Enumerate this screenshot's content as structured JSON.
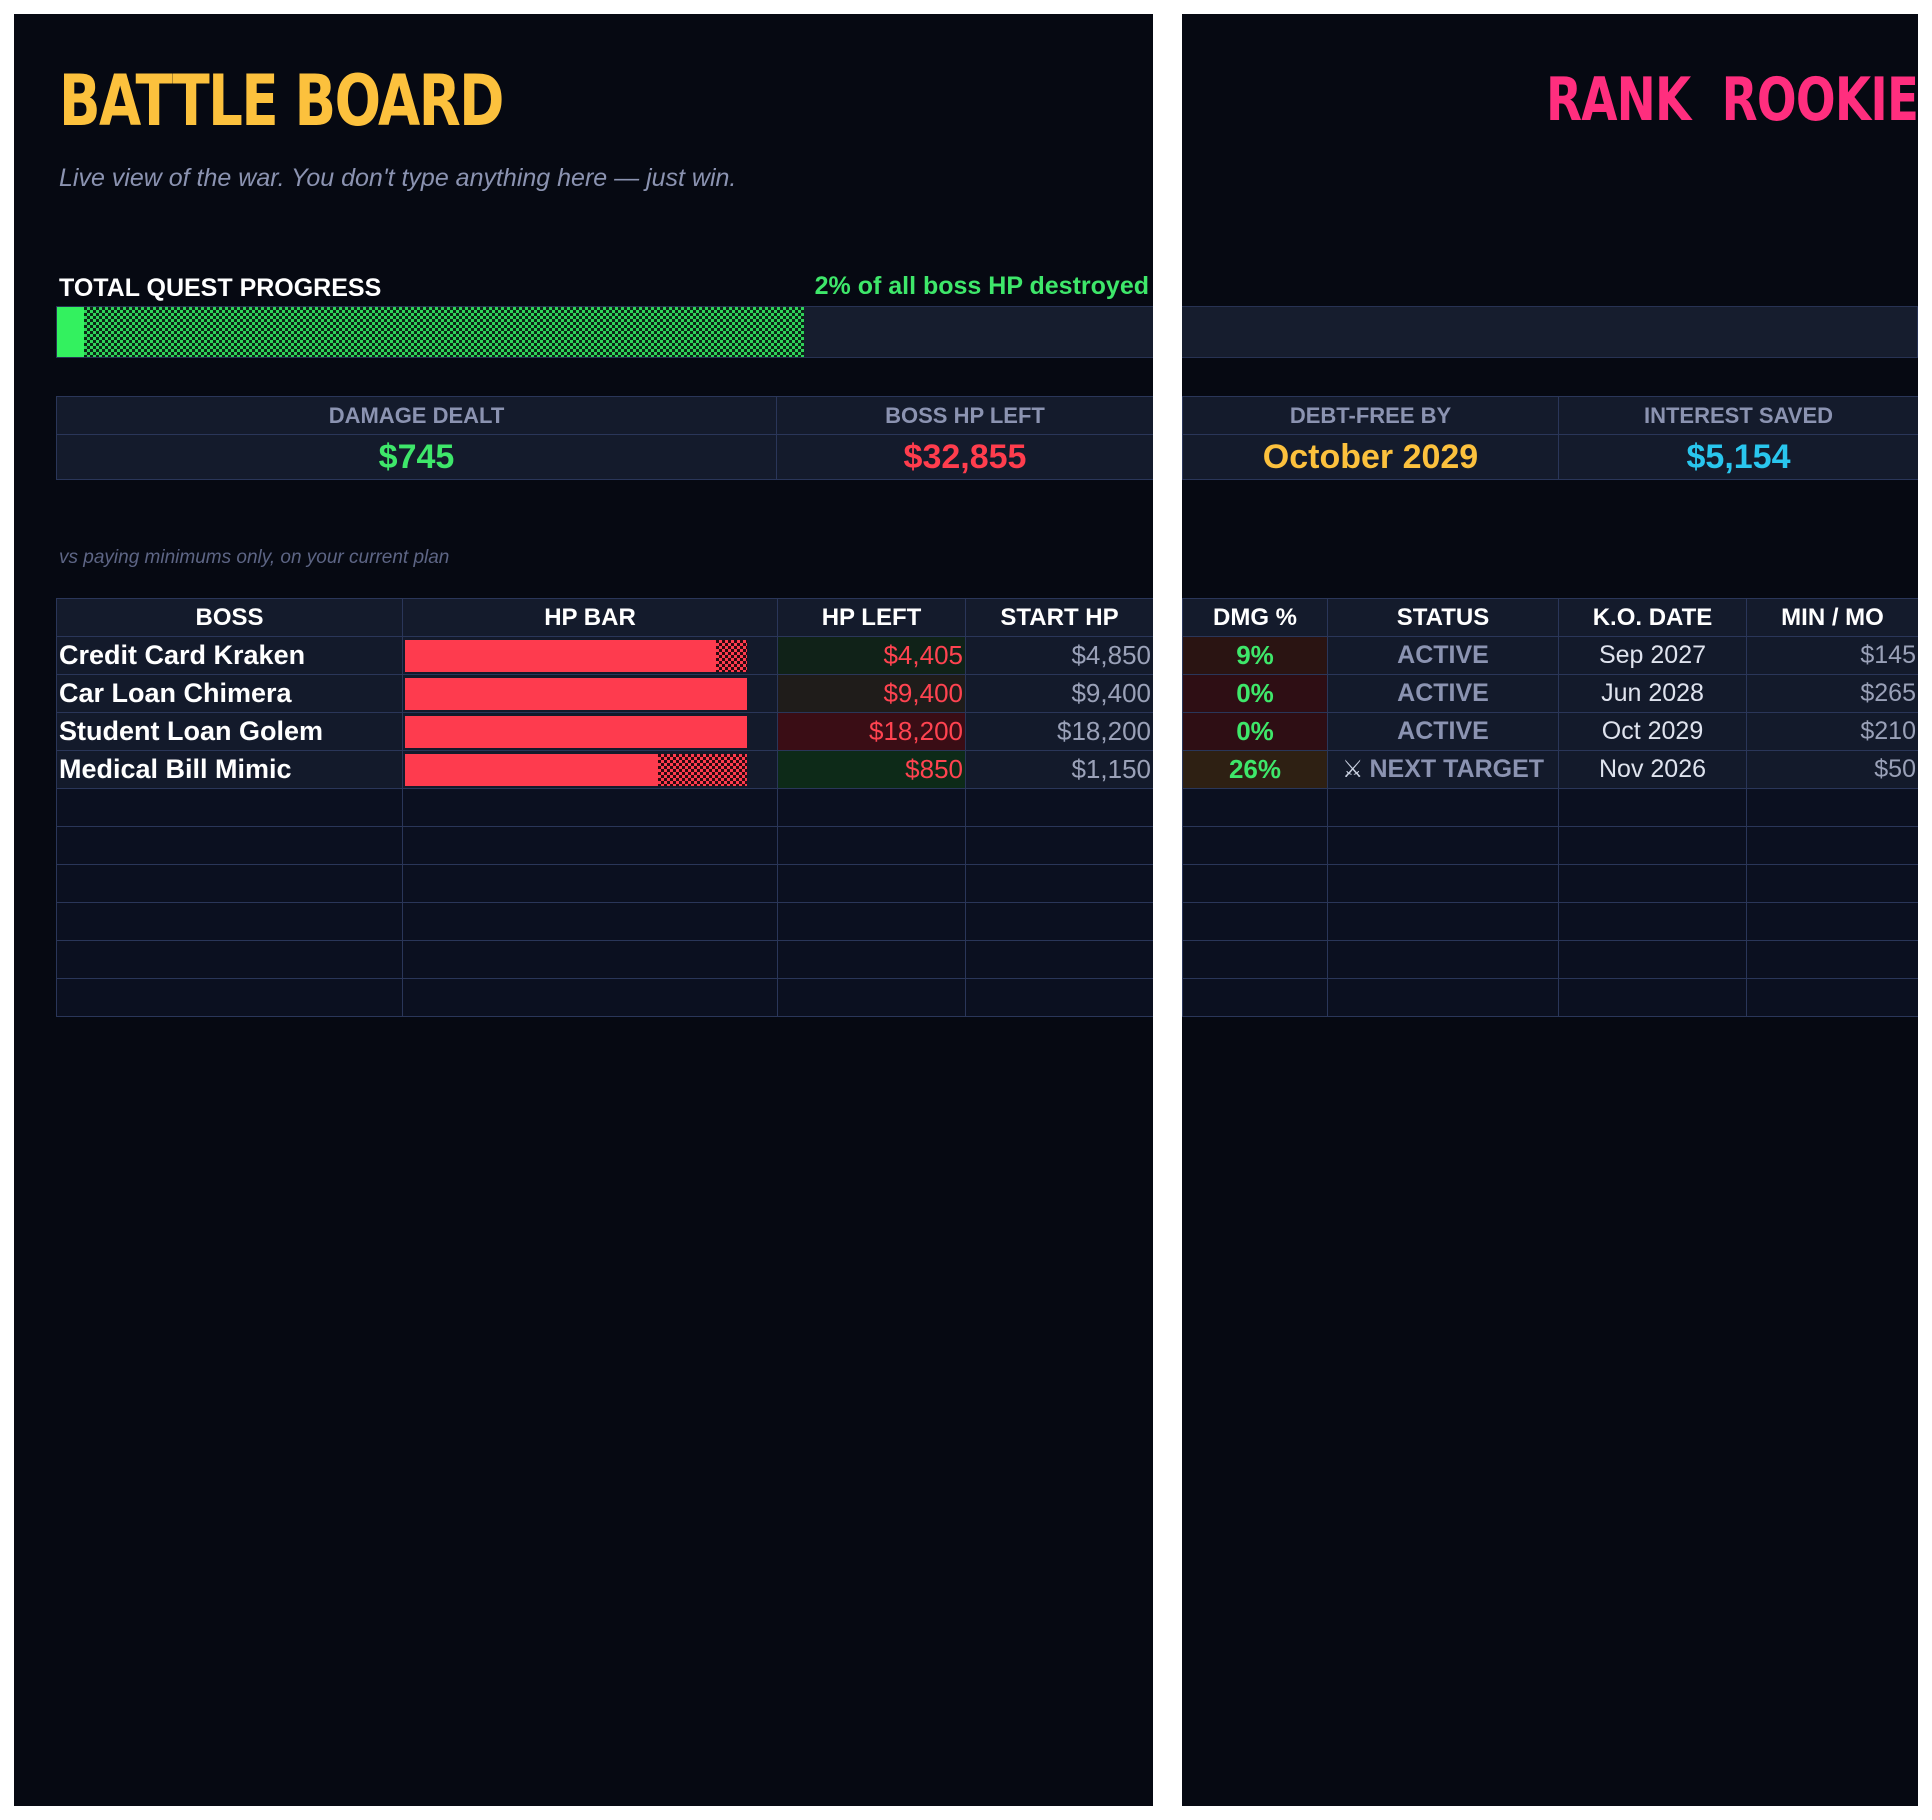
{
  "header": {
    "title": "BATTLE BOARD",
    "subtitle": "Live view of the war. You don't type anything here — just win.",
    "rank": "RANK  ROOKIE"
  },
  "progress": {
    "label": "TOTAL QUEST PROGRESS",
    "note": "2% of all boss HP destroyed",
    "fraction": 0.02
  },
  "kpis": {
    "damage_dealt": {
      "label": "DAMAGE DEALT",
      "value": "$745"
    },
    "boss_hp_left": {
      "label": "BOSS HP LEFT",
      "value": "$32,855"
    },
    "debt_free_by": {
      "label": "DEBT-FREE BY",
      "value": "October 2029"
    },
    "interest_saved": {
      "label": "INTEREST SAVED",
      "value": "$5,154"
    },
    "footnote": "vs paying minimums only, on your current plan"
  },
  "table": {
    "columns": {
      "boss": "BOSS",
      "hp_bar": "HP BAR",
      "hp_left": "HP LEFT",
      "start_hp": "START HP",
      "dmg": "DMG %",
      "status": "STATUS",
      "ko_date": "K.O. DATE",
      "min_mo": "MIN / MO"
    },
    "rows": [
      {
        "boss": "Credit Card Kraken",
        "hp_left": "$4,405",
        "start_hp": "$4,850",
        "dmg": "9%",
        "status": "ACTIVE",
        "ko_date": "Sep 2027",
        "min_mo": "$145",
        "hp_fraction": 0.908
      },
      {
        "boss": "Car Loan Chimera",
        "hp_left": "$9,400",
        "start_hp": "$9,400",
        "dmg": "0%",
        "status": "ACTIVE",
        "ko_date": "Jun 2028",
        "min_mo": "$265",
        "hp_fraction": 1.0
      },
      {
        "boss": "Student Loan Golem",
        "hp_left": "$18,200",
        "start_hp": "$18,200",
        "dmg": "0%",
        "status": "ACTIVE",
        "ko_date": "Oct 2029",
        "min_mo": "$210",
        "hp_fraction": 1.0
      },
      {
        "boss": "Medical Bill Mimic",
        "hp_left": "$850",
        "start_hp": "$1,150",
        "dmg": "26%",
        "status": "NEXT TARGET",
        "status_icon": "crossed-swords-icon",
        "ko_date": "Nov 2026",
        "min_mo": "$50",
        "hp_fraction": 0.739
      }
    ]
  },
  "colors": {
    "title": "#fcc13d",
    "rank": "#ff2e7e",
    "damage": "#3ee76a",
    "hp": "#fe3b4e",
    "date": "#fcc13d",
    "saved": "#29c6ee"
  }
}
